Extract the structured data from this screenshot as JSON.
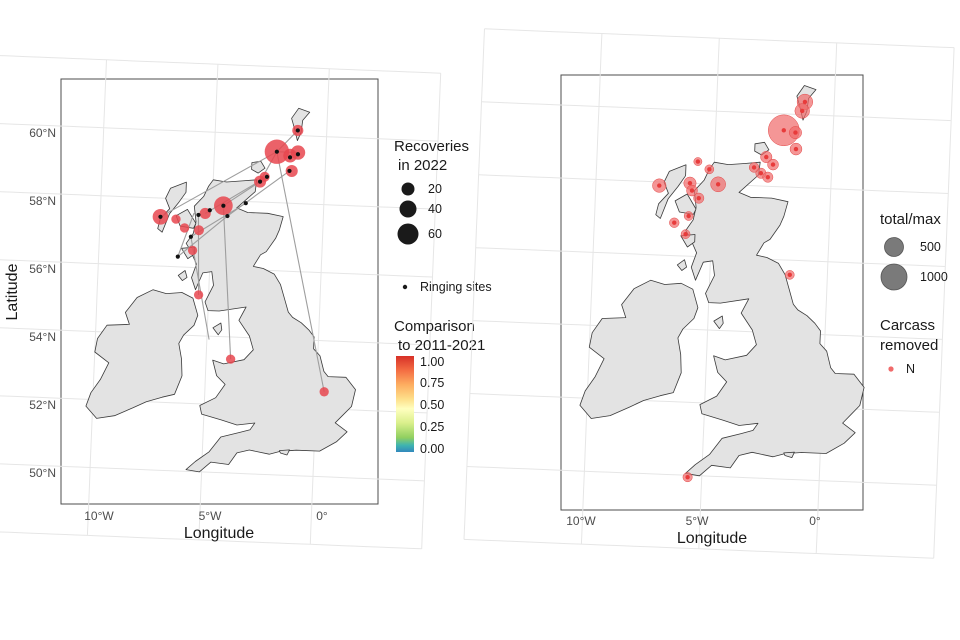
{
  "left_map": {
    "x_axis": {
      "title": "Longitude",
      "ticks": [
        "10°W",
        "5°W",
        "0°"
      ]
    },
    "y_axis": {
      "title": "Latitude",
      "ticks": [
        "60°N",
        "58°N",
        "56°N",
        "54°N",
        "52°N",
        "50°N"
      ]
    },
    "legend": {
      "recoveries_title_line1": "Recoveries",
      "recoveries_title_line2": "in 2022",
      "recoveries_sizes": [
        "20",
        "40",
        "60"
      ],
      "ringing_sites_label": "Ringing sites",
      "comparison_title_line1": "Comparison",
      "comparison_title_line2": "to 2011-2021",
      "colorbar_ticks": [
        "1.00",
        "0.75",
        "0.50",
        "0.25",
        "0.00"
      ]
    },
    "recoveries": [
      {
        "lon": -2.2,
        "lat": 59.5,
        "count": 60
      },
      {
        "lon": -1.6,
        "lat": 59.4,
        "count": 12
      },
      {
        "lon": -1.3,
        "lat": 60.15,
        "count": 6
      },
      {
        "lon": -1.25,
        "lat": 59.5,
        "count": 14
      },
      {
        "lon": -1.5,
        "lat": 58.95,
        "count": 8
      },
      {
        "lon": -7.3,
        "lat": 57.45,
        "count": 18
      },
      {
        "lon": -4.5,
        "lat": 57.85,
        "count": 30
      },
      {
        "lon": -2.9,
        "lat": 58.6,
        "count": 8
      },
      {
        "lon": -2.7,
        "lat": 58.75,
        "count": 4
      },
      {
        "lon": -5.3,
        "lat": 57.6,
        "count": 6
      },
      {
        "lon": -5.55,
        "lat": 57.1,
        "count": 4
      },
      {
        "lon": -5.8,
        "lat": 56.5,
        "count": 3
      },
      {
        "lon": -5.45,
        "lat": 55.2,
        "count": 3
      },
      {
        "lon": -3.9,
        "lat": 53.35,
        "count": 3
      },
      {
        "lon": 0.35,
        "lat": 52.5,
        "count": 3
      },
      {
        "lon": -6.2,
        "lat": 57.15,
        "count": 3
      },
      {
        "lon": -6.6,
        "lat": 57.4,
        "count": 3
      }
    ],
    "ringing_sites": [
      {
        "lon": -2.2,
        "lat": 59.5
      },
      {
        "lon": -1.3,
        "lat": 60.15
      },
      {
        "lon": -1.6,
        "lat": 59.35
      },
      {
        "lon": -1.25,
        "lat": 59.45
      },
      {
        "lon": -2.9,
        "lat": 58.6
      },
      {
        "lon": -2.6,
        "lat": 58.75
      },
      {
        "lon": -4.5,
        "lat": 57.85
      },
      {
        "lon": -3.5,
        "lat": 57.95
      },
      {
        "lon": -5.1,
        "lat": 57.7
      },
      {
        "lon": -5.6,
        "lat": 57.55
      },
      {
        "lon": -5.9,
        "lat": 56.9
      },
      {
        "lon": -6.45,
        "lat": 56.3
      },
      {
        "lon": -4.3,
        "lat": 57.55
      },
      {
        "lon": -1.6,
        "lat": 58.95
      },
      {
        "lon": -7.3,
        "lat": 57.45
      }
    ],
    "links": [
      [
        -2.2,
        59.5,
        -7.3,
        57.45
      ],
      [
        -2.2,
        59.5,
        0.35,
        52.5
      ],
      [
        -2.2,
        59.5,
        -1.3,
        60.15
      ],
      [
        -2.2,
        59.5,
        -1.25,
        59.5
      ],
      [
        -2.9,
        58.6,
        -4.5,
        57.85
      ],
      [
        -2.6,
        58.75,
        -5.3,
        57.6
      ],
      [
        -4.5,
        57.85,
        -3.9,
        53.35
      ],
      [
        -5.6,
        57.55,
        -5.45,
        55.2
      ],
      [
        -5.9,
        56.9,
        -4.9,
        53.9
      ],
      [
        -6.45,
        56.3,
        -5.8,
        57.6
      ],
      [
        -3.5,
        57.95,
        -5.9,
        56.9
      ],
      [
        -2.2,
        59.5,
        -2.9,
        58.6
      ],
      [
        -1.6,
        58.95,
        -4.3,
        57.55
      ],
      [
        -4.3,
        57.55,
        -6.45,
        56.3
      ]
    ]
  },
  "right_map": {
    "x_axis": {
      "title": "Longitude",
      "ticks": [
        "10°W",
        "5°W",
        "0°"
      ]
    },
    "legend": {
      "total_title": "total/max",
      "total_sizes": [
        "500",
        "1000"
      ],
      "carcass_title_line1": "Carcass",
      "carcass_title_line2": "removed",
      "carcass_item": "N"
    },
    "records": [
      {
        "lon": -2.1,
        "lat": 59.55,
        "total": 1000
      },
      {
        "lon": -1.25,
        "lat": 60.35,
        "total": 180
      },
      {
        "lon": -1.35,
        "lat": 60.1,
        "total": 150
      },
      {
        "lon": -1.6,
        "lat": 59.5,
        "total": 90
      },
      {
        "lon": -1.55,
        "lat": 59.05,
        "total": 80
      },
      {
        "lon": -7.3,
        "lat": 57.9,
        "total": 120
      },
      {
        "lon": -4.8,
        "lat": 58.0,
        "total": 160
      },
      {
        "lon": -6.0,
        "lat": 58.0,
        "total": 90
      },
      {
        "lon": -5.9,
        "lat": 57.8,
        "total": 60
      },
      {
        "lon": -5.6,
        "lat": 57.6,
        "total": 50
      },
      {
        "lon": -5.2,
        "lat": 58.4,
        "total": 30
      },
      {
        "lon": -2.8,
        "lat": 58.8,
        "total": 70
      },
      {
        "lon": -2.5,
        "lat": 58.6,
        "total": 60
      },
      {
        "lon": -3.0,
        "lat": 58.35,
        "total": 50
      },
      {
        "lon": -2.7,
        "lat": 58.25,
        "total": 50
      },
      {
        "lon": -3.3,
        "lat": 58.5,
        "total": 40
      },
      {
        "lon": -6.6,
        "lat": 56.9,
        "total": 40
      },
      {
        "lon": -6.1,
        "lat": 56.6,
        "total": 30
      },
      {
        "lon": -6.0,
        "lat": 57.1,
        "total": 30
      },
      {
        "lon": -1.6,
        "lat": 55.6,
        "total": 30
      },
      {
        "lon": -5.6,
        "lat": 49.95,
        "total": 35
      },
      {
        "lon": -5.7,
        "lat": 58.6,
        "total": 20
      }
    ]
  },
  "colors": {
    "recovery_fill": "#e8474f",
    "carcass_fill": "#f06a6a",
    "land": "#e3e3e3",
    "coast": "#3a3a3a",
    "links": "#9e9e9e",
    "colorbar_stops": [
      "#d73027",
      "#fc8d59",
      "#fee090",
      "#ffffbf",
      "#e0f3f8",
      "#91bfdb",
      "#4575b4"
    ]
  }
}
